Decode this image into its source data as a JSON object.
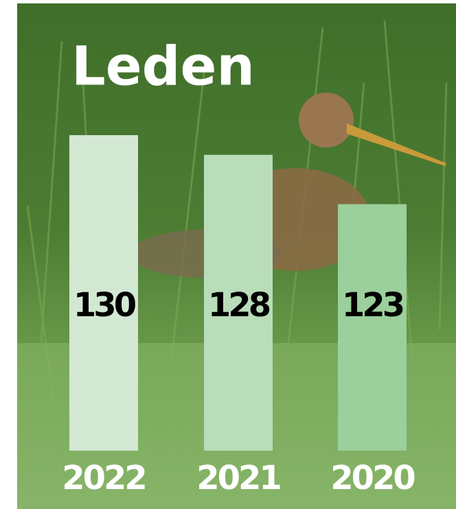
{
  "chart_data": {
    "type": "bar",
    "title": "Leden",
    "categories": [
      "2022",
      "2021",
      "2020"
    ],
    "values": [
      130,
      128,
      123
    ],
    "colors": [
      "#d3e8d3",
      "#b9dcb9",
      "#9bcf9b"
    ],
    "ylim": [
      98,
      130
    ]
  }
}
